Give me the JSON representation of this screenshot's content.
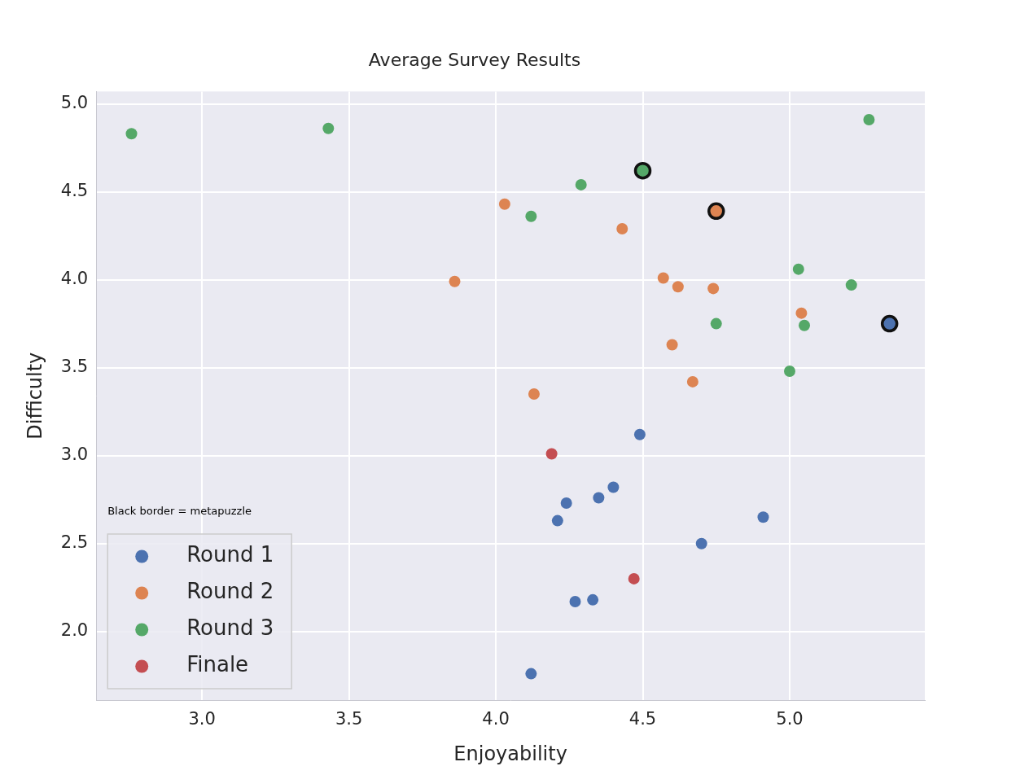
{
  "chart_data": {
    "type": "scatter",
    "title": "Average Survey Results",
    "x_label": "Enjoyability",
    "y_label": "Difficulty",
    "annotation": "Black border = metapuzzle",
    "legend": "lower left",
    "grid": true,
    "marker": "circle",
    "xlim": [
      2.64,
      5.46
    ],
    "ylim": [
      1.61,
      5.07
    ],
    "xticks": [
      {
        "value": 3,
        "label": "3.0"
      },
      {
        "value": 3.5,
        "label": "3.5"
      },
      {
        "value": 4,
        "label": "4.0"
      },
      {
        "value": 4.5,
        "label": "4.5"
      },
      {
        "value": 5,
        "label": "5.0"
      }
    ],
    "yticks": [
      {
        "value": 2,
        "label": "2.0"
      },
      {
        "value": 2.5,
        "label": "2.5"
      },
      {
        "value": 3,
        "label": "3.0"
      },
      {
        "value": 3.5,
        "label": "3.5"
      },
      {
        "value": 4,
        "label": "4.0"
      },
      {
        "value": 4.5,
        "label": "4.5"
      },
      {
        "value": 5,
        "label": "5.0"
      }
    ],
    "series": [
      {
        "name": "Round 1",
        "color": "#4c72b0",
        "x": [
          4.49,
          4.24,
          4.21,
          4.35,
          4.4,
          4.91,
          4.7,
          4.27,
          4.33,
          4.12,
          5.34
        ],
        "values": [
          3.12,
          2.73,
          2.63,
          2.76,
          2.82,
          2.65,
          2.5,
          2.17,
          2.18,
          1.76,
          3.75
        ],
        "metapuzzle": [
          false,
          false,
          false,
          false,
          false,
          false,
          false,
          false,
          false,
          false,
          true
        ]
      },
      {
        "name": "Round 2",
        "color": "#dd8452",
        "x": [
          4.03,
          3.86,
          4.43,
          4.75,
          4.57,
          4.62,
          4.74,
          5.04,
          4.6,
          4.67,
          4.13
        ],
        "values": [
          4.43,
          3.99,
          4.29,
          4.39,
          4.01,
          3.96,
          3.95,
          3.81,
          3.63,
          3.42,
          3.35
        ],
        "metapuzzle": [
          false,
          false,
          false,
          true,
          false,
          false,
          false,
          false,
          false,
          false,
          false
        ]
      },
      {
        "name": "Round 3",
        "color": "#55a868",
        "x": [
          2.76,
          3.43,
          5.27,
          4.5,
          4.29,
          4.12,
          5.03,
          5.21,
          4.75,
          5.05,
          5.0
        ],
        "values": [
          4.83,
          4.86,
          4.91,
          4.62,
          4.54,
          4.36,
          4.06,
          3.97,
          3.75,
          3.74,
          3.48
        ],
        "metapuzzle": [
          false,
          false,
          false,
          true,
          false,
          false,
          false,
          false,
          false,
          false,
          false
        ]
      },
      {
        "name": "Finale",
        "color": "#c44e52",
        "x": [
          4.19,
          4.47
        ],
        "values": [
          3.01,
          2.3
        ],
        "metapuzzle": [
          false,
          false
        ]
      }
    ]
  }
}
